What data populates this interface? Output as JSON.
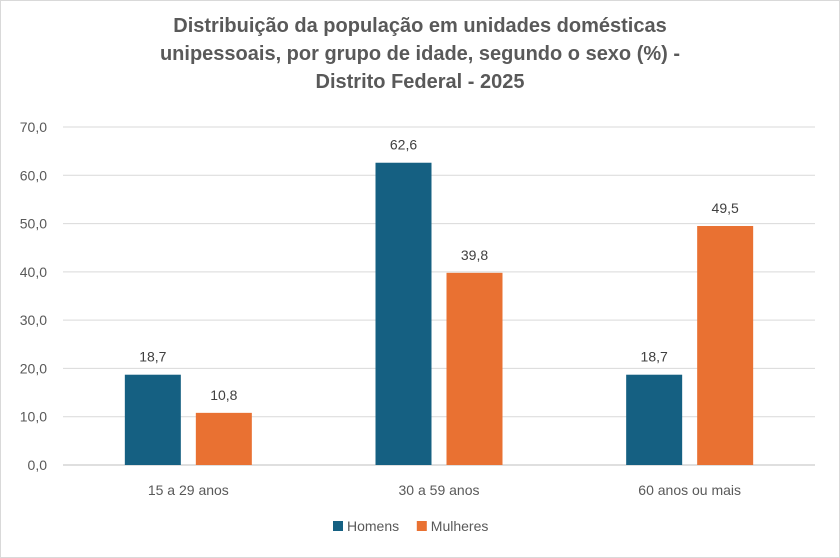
{
  "chart_data": {
    "type": "bar",
    "title_lines": [
      "Distribuição da população em unidades domésticas",
      "unipessoais, por grupo de idade, segundo o sexo (%) -",
      "Distrito Federal - 2025"
    ],
    "categories": [
      "15 a 29 anos",
      "30 a 59 anos",
      "60 anos ou mais"
    ],
    "series": [
      {
        "name": "Homens",
        "color": "#156082",
        "values": [
          18.7,
          62.6,
          18.7
        ],
        "labels": [
          "18,7",
          "62,6",
          "18,7"
        ]
      },
      {
        "name": "Mulheres",
        "color": "#E97132",
        "values": [
          10.8,
          39.8,
          49.5
        ],
        "labels": [
          "10,8",
          "39,8",
          "49,5"
        ]
      }
    ],
    "ylim": [
      0,
      70
    ],
    "yticks": [
      0,
      10,
      20,
      30,
      40,
      50,
      60,
      70
    ],
    "ytick_labels": [
      "0,0",
      "10,0",
      "20,0",
      "30,0",
      "40,0",
      "50,0",
      "60,0",
      "70,0"
    ],
    "grid": true,
    "legend_position": "bottom",
    "xlabel": "",
    "ylabel": ""
  }
}
